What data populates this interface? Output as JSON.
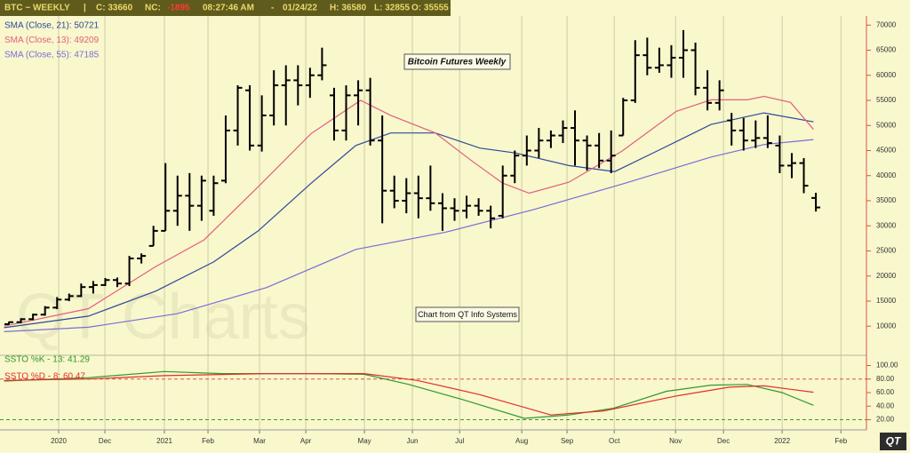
{
  "header": {
    "symbol": "BTC ~ WEEKLY",
    "sep": "|",
    "close": "C: 33660",
    "nc_label": "NC:",
    "nc_value": "-1895",
    "time": "08:27:46 AM",
    "dash": "-",
    "date": "01/24/22",
    "high": "H: 36580",
    "low": "L: 32855",
    "open": "O: 35555"
  },
  "annotations": [
    "Bitcoin Futures Weekly",
    "Chart from QT Info Systems"
  ],
  "watermark": "QT Charts",
  "logo": "QT",
  "chart_data": [
    {
      "type": "ohlc",
      "color": "#000000",
      "grid": true,
      "x": [
        1,
        2,
        3,
        4,
        5,
        6,
        7,
        8,
        9,
        10,
        11,
        12,
        13,
        14,
        15,
        16,
        17,
        18,
        19,
        20,
        21,
        22,
        23,
        24,
        25,
        26,
        27,
        28,
        29,
        30,
        31,
        32,
        33,
        34,
        35,
        36,
        37,
        38,
        39,
        40,
        41,
        42,
        43,
        44,
        45,
        46,
        47,
        48,
        49,
        50,
        51,
        52,
        53,
        54,
        55,
        56,
        57,
        58,
        59,
        60,
        61,
        62,
        63,
        64,
        65,
        66,
        67,
        68
      ],
      "open": [
        10400,
        10800,
        11400,
        12300,
        13700,
        15300,
        16000,
        17800,
        18200,
        19200,
        18500,
        23500,
        26000,
        29000,
        33000,
        36000,
        34000,
        33000,
        39000,
        49000,
        57000,
        46000,
        52000,
        58000,
        59000,
        58000,
        60000,
        56000,
        49000,
        56000,
        57000,
        47000,
        37000,
        35000,
        36500,
        35500,
        34500,
        33500,
        33000,
        34000,
        33000,
        32000,
        40000,
        44000,
        45000,
        47000,
        48000,
        49500,
        47000,
        46000,
        43000,
        48000,
        55000,
        64000,
        61500,
        62000,
        63500,
        65000,
        57500,
        54500,
        51000,
        49000,
        47000,
        47500,
        46000,
        42000,
        42500,
        35555
      ],
      "high": [
        10900,
        11600,
        12500,
        14000,
        15800,
        16500,
        18500,
        19000,
        19600,
        19700,
        24000,
        24500,
        30000,
        42500,
        40000,
        40500,
        40000,
        40000,
        52000,
        58000,
        58000,
        56000,
        61000,
        62000,
        62000,
        61500,
        65500,
        57500,
        58000,
        59000,
        59500,
        52000,
        40000,
        39500,
        40000,
        42000,
        36500,
        35500,
        36000,
        35500,
        34000,
        42000,
        45000,
        48000,
        49500,
        49000,
        51000,
        53000,
        48000,
        48500,
        49000,
        55500,
        67000,
        67500,
        65500,
        66000,
        69000,
        66500,
        61000,
        59000,
        52500,
        51500,
        51000,
        52000,
        48000,
        44500,
        43500,
        36580
      ],
      "low": [
        10300,
        10600,
        11200,
        12100,
        13400,
        15000,
        15800,
        16500,
        18000,
        17800,
        18000,
        22500,
        26000,
        29000,
        30000,
        29000,
        31000,
        32000,
        38500,
        46000,
        45000,
        44800,
        50000,
        50000,
        54000,
        55500,
        59000,
        47000,
        47000,
        50000,
        46000,
        30500,
        33500,
        32500,
        31500,
        33000,
        29000,
        31000,
        31500,
        32000,
        29500,
        31500,
        38500,
        42000,
        43500,
        45500,
        46500,
        42000,
        41000,
        41500,
        40500,
        48000,
        54500,
        60000,
        60500,
        59500,
        59500,
        56000,
        53000,
        53000,
        46000,
        45000,
        45500,
        45500,
        40500,
        39500,
        36500,
        32855
      ],
      "close": [
        10800,
        11400,
        12300,
        13700,
        15300,
        16000,
        17800,
        18200,
        19200,
        18500,
        23500,
        24000,
        29000,
        33000,
        36000,
        34000,
        39000,
        38500,
        49000,
        57500,
        46000,
        52000,
        58000,
        59000,
        58000,
        60000,
        62000,
        49000,
        56000,
        57000,
        47000,
        37000,
        35000,
        36500,
        35500,
        34500,
        33500,
        33000,
        34000,
        33000,
        31500,
        40000,
        44000,
        45000,
        47000,
        48000,
        49500,
        47000,
        46000,
        43000,
        44000,
        55000,
        64000,
        61500,
        62000,
        63500,
        65000,
        57500,
        54500,
        57000,
        49000,
        47000,
        47500,
        46500,
        42000,
        42500,
        38000,
        33660
      ],
      "series": [
        {
          "name": "SMA (Close, 21): 50721",
          "color": "#2b4b9b",
          "x": [
            0.6,
            7.6,
            13.2,
            18.0,
            21.7,
            26.1,
            29.8,
            32.7,
            36.4,
            40.1,
            43.1,
            47.5,
            51.3,
            54.9,
            59.3,
            63.7,
            67.8
          ],
          "values": [
            9700,
            12000,
            17000,
            22800,
            29000,
            38500,
            46000,
            48500,
            48500,
            45500,
            44500,
            42000,
            40800,
            45000,
            50200,
            52500,
            50721
          ]
        },
        {
          "name": "SMA (Close, 13): 49209",
          "color": "#e0607e",
          "x": [
            0.6,
            7.6,
            13.2,
            17.2,
            21.7,
            26.1,
            30.2,
            32.7,
            36.4,
            39.4,
            42.0,
            44.2,
            47.5,
            51.9,
            56.4,
            59.3,
            62.3,
            63.7,
            65.9,
            67.8
          ],
          "values": [
            10000,
            13500,
            21900,
            27200,
            37800,
            48400,
            55000,
            52000,
            48500,
            43000,
            38500,
            36500,
            38700,
            44900,
            52800,
            55100,
            55100,
            55800,
            54600,
            49209
          ]
        },
        {
          "name": "SMA (Close, 55): 47185",
          "color": "#7b6cd9",
          "x": [
            0.6,
            7.6,
            15.0,
            22.4,
            29.8,
            37.2,
            44.5,
            51.9,
            59.3,
            63.7,
            67.8
          ],
          "values": [
            8900,
            9800,
            12500,
            17700,
            25300,
            28700,
            33200,
            38300,
            43700,
            46200,
            47185
          ]
        }
      ],
      "xlim": [
        0.26,
        72.2
      ],
      "xticks": [
        {
          "value": 5.13,
          "label": "2020"
        },
        {
          "value": 8.97,
          "label": "Dec"
        },
        {
          "value": 13.91,
          "label": "2021"
        },
        {
          "value": 17.53,
          "label": "Feb"
        },
        {
          "value": 21.81,
          "label": "Mar"
        },
        {
          "value": 25.65,
          "label": "Apr"
        },
        {
          "value": 30.52,
          "label": "May"
        },
        {
          "value": 34.5,
          "label": "Jun"
        },
        {
          "value": 38.42,
          "label": "Jul"
        },
        {
          "value": 43.58,
          "label": "Aug"
        },
        {
          "value": 47.34,
          "label": "Sep"
        },
        {
          "value": 51.26,
          "label": "Oct"
        },
        {
          "value": 56.35,
          "label": "Nov"
        },
        {
          "value": 60.33,
          "label": "Dec"
        },
        {
          "value": 65.2,
          "label": "2022"
        },
        {
          "value": 70.08,
          "label": "Feb"
        }
      ],
      "ylim": [
        4200,
        75000
      ],
      "yticks": [
        10000,
        15000,
        20000,
        25000,
        30000,
        35000,
        40000,
        45000,
        50000,
        55000,
        60000,
        65000,
        70000
      ]
    },
    {
      "type": "oscillator",
      "series": [
        {
          "name": "SSTO %K - 13: 41.29",
          "color": "#2f9a2f",
          "x": [
            0.6,
            7.6,
            13.9,
            18.7,
            26.1,
            30.5,
            34.2,
            38.6,
            43.8,
            47.5,
            51.2,
            55.6,
            59.3,
            62.3,
            65.2,
            67.8
          ],
          "values": [
            77,
            82,
            91,
            88,
            88,
            87,
            72,
            50,
            22,
            27,
            37,
            62,
            71,
            72,
            60,
            41.29
          ]
        },
        {
          "name": "SSTO %D - 8: 60.47",
          "color": "#e0302a",
          "x": [
            0.6,
            7.6,
            13.9,
            22.4,
            30.5,
            34.9,
            40.1,
            46.0,
            50.4,
            56.4,
            60.8,
            63.7,
            67.8
          ],
          "values": [
            78,
            80,
            85,
            88,
            88,
            78,
            57,
            27,
            33,
            55,
            68,
            70,
            60.47
          ]
        }
      ],
      "levels": [
        {
          "value": 80,
          "color": "#d9534f"
        },
        {
          "value": 20,
          "color": "#3a9a3a"
        }
      ],
      "xlim": [
        0.26,
        72.2
      ],
      "ylim": [
        5,
        115
      ],
      "yticks": [
        {
          "value": 100,
          "label": "100.00"
        },
        {
          "value": 80,
          "label": "80.00"
        },
        {
          "value": 60,
          "label": "60.00"
        },
        {
          "value": 40,
          "label": "40.00"
        },
        {
          "value": 20,
          "label": "20.00"
        }
      ]
    }
  ]
}
